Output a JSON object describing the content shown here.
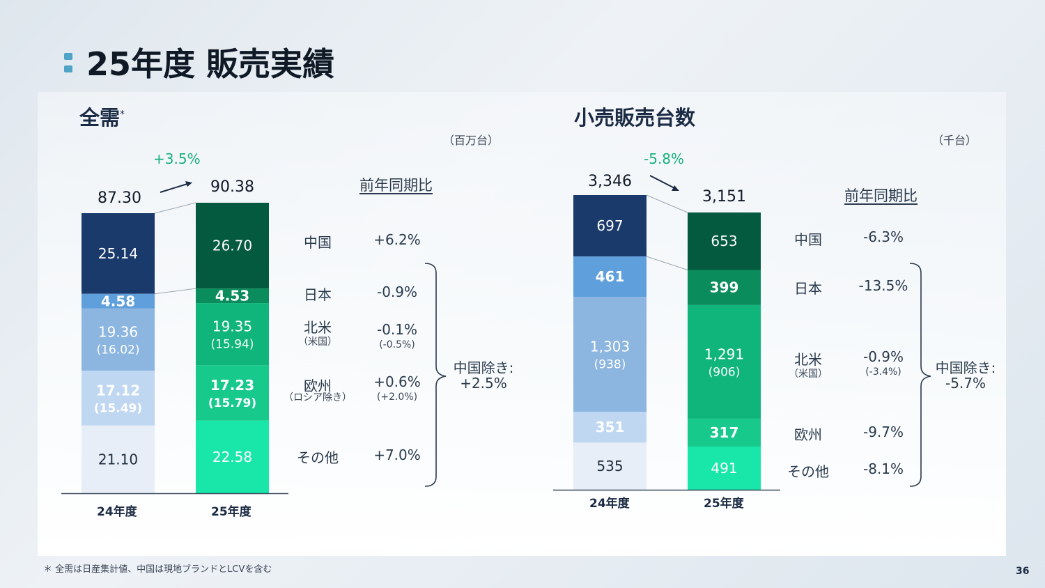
{
  "title": "25年度 販売実績",
  "page_number": "36",
  "footnote": "＊ 全需は日産集計値、中国は現地ブランドとLCVを含む",
  "left": {
    "heading": "全需",
    "heading_mark": "*",
    "unit": "（百万台）",
    "growth": "+3.5%",
    "yoy_label": "前年同期比",
    "regions": [
      {
        "name": "中国",
        "sub": "",
        "pct": "+6.2%",
        "pct_sub": ""
      },
      {
        "name": "日本",
        "sub": "",
        "pct": "-0.9%",
        "pct_sub": ""
      },
      {
        "name": "北米",
        "sub": "（米国）",
        "pct": "-0.1%",
        "pct_sub": "(-0.5%)"
      },
      {
        "name": "欧州",
        "sub": "（ロシア除き）",
        "pct": "+0.6%",
        "pct_sub": "(+2.0%)"
      },
      {
        "name": "その他",
        "sub": "",
        "pct": "+7.0%",
        "pct_sub": ""
      }
    ],
    "brace_label_1": "中国除き:",
    "brace_label_2": "+2.5%"
  },
  "right": {
    "heading": "小売販売台数",
    "unit": "（千台）",
    "growth": "-5.8%",
    "yoy_label": "前年同期比",
    "regions": [
      {
        "name": "中国",
        "sub": "",
        "pct": "-6.3%",
        "pct_sub": ""
      },
      {
        "name": "日本",
        "sub": "",
        "pct": "-13.5%",
        "pct_sub": ""
      },
      {
        "name": "北米",
        "sub": "（米国）",
        "pct": "-0.9%",
        "pct_sub": "(-3.4%)"
      },
      {
        "name": "欧州",
        "sub": "",
        "pct": "-9.7%",
        "pct_sub": ""
      },
      {
        "name": "その他",
        "sub": "",
        "pct": "-8.1%",
        "pct_sub": ""
      }
    ],
    "brace_label_1": "中国除き:",
    "brace_label_2": "-5.7%"
  },
  "colors": {
    "fy24": [
      "#1a3a6c",
      "#5f9fdc",
      "#8cb6e0",
      "#c0d7f2",
      "#e7eef8"
    ],
    "fy25": [
      "#045a3e",
      "#0a8c5c",
      "#10b57b",
      "#18c98c",
      "#19e6a9"
    ],
    "growth": "#17b07a"
  },
  "chart_data": [
    {
      "type": "bar",
      "stacked": true,
      "categories": [
        "24年度",
        "25年度"
      ],
      "totals": [
        "87.30",
        "90.38"
      ],
      "series": [
        {
          "name": "中国",
          "values": [
            25.14,
            26.7
          ],
          "labels": [
            "25.14",
            "26.70"
          ],
          "sub_labels": [
            "",
            ""
          ]
        },
        {
          "name": "日本",
          "values": [
            4.58,
            4.53
          ],
          "labels": [
            "4.58",
            "4.53"
          ],
          "sub_labels": [
            "",
            ""
          ]
        },
        {
          "name": "北米",
          "values": [
            19.36,
            19.35
          ],
          "labels": [
            "19.36",
            "19.35"
          ],
          "sub_labels": [
            "(16.02)",
            "(15.94)"
          ]
        },
        {
          "name": "欧州",
          "values": [
            17.12,
            17.23
          ],
          "labels": [
            "17.12",
            "17.23"
          ],
          "sub_labels": [
            "(15.49)",
            "(15.79)"
          ]
        },
        {
          "name": "その他",
          "values": [
            21.1,
            22.58
          ],
          "labels": [
            "21.10",
            "22.58"
          ],
          "sub_labels": [
            "",
            ""
          ]
        }
      ]
    },
    {
      "type": "bar",
      "stacked": true,
      "categories": [
        "24年度",
        "25年度"
      ],
      "totals": [
        "3,346",
        "3,151"
      ],
      "series": [
        {
          "name": "中国",
          "values": [
            697,
            653
          ],
          "labels": [
            "697",
            "653"
          ],
          "sub_labels": [
            "",
            ""
          ]
        },
        {
          "name": "日本",
          "values": [
            461,
            399
          ],
          "labels": [
            "461",
            "399"
          ],
          "sub_labels": [
            "",
            ""
          ]
        },
        {
          "name": "北米",
          "values": [
            1303,
            1291
          ],
          "labels": [
            "1,303",
            "1,291"
          ],
          "sub_labels": [
            "(938)",
            "(906)"
          ]
        },
        {
          "name": "欧州",
          "values": [
            351,
            317
          ],
          "labels": [
            "351",
            "317"
          ],
          "sub_labels": [
            "",
            ""
          ]
        },
        {
          "name": "その他",
          "values": [
            535,
            491
          ],
          "labels": [
            "535",
            "491"
          ],
          "sub_labels": [
            "",
            ""
          ]
        }
      ]
    }
  ]
}
